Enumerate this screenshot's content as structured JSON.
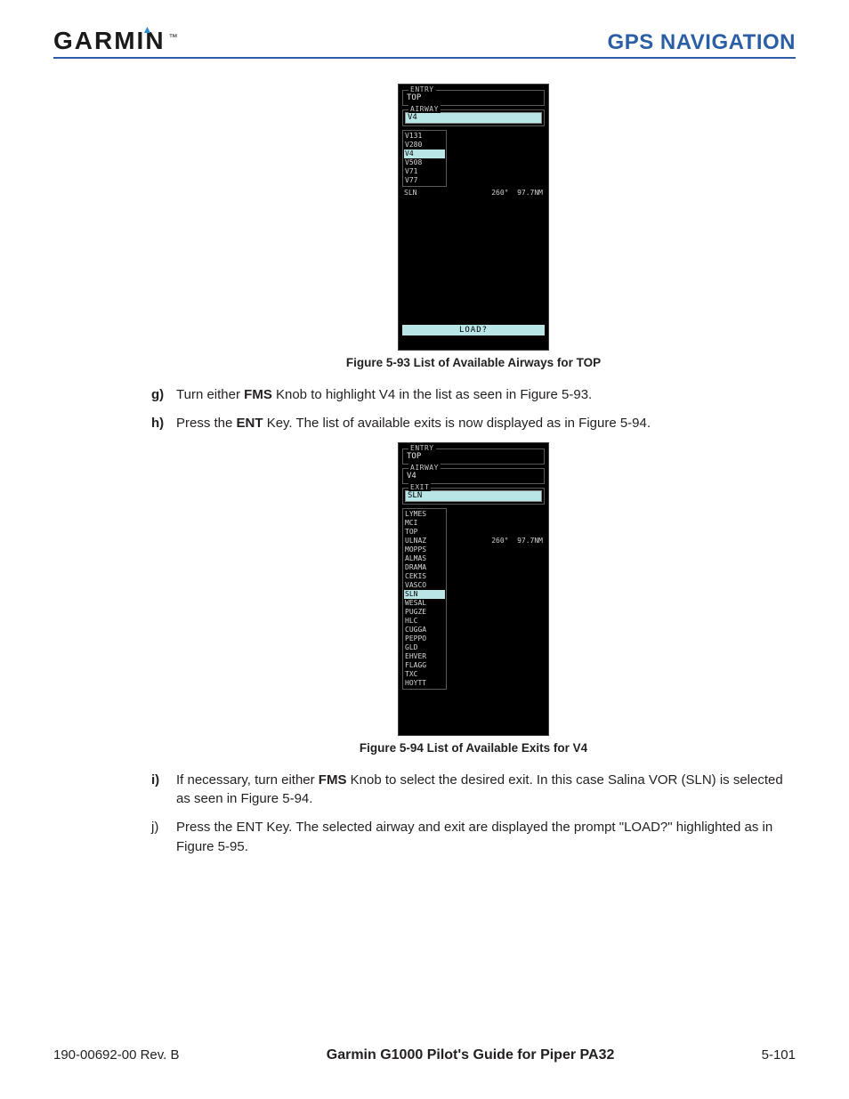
{
  "header": {
    "brand": "GARMIN",
    "section": "GPS NAVIGATION"
  },
  "figure1": {
    "caption": "Figure 5-93  List of Available Airways for TOP",
    "entry_legend": "ENTRY",
    "entry_value": "TOP",
    "airway_legend": "AIRWAY",
    "airway_value": "V4",
    "airways": [
      "V131",
      "V280",
      "V4",
      "V508",
      "V71",
      "V77"
    ],
    "selected_airway": "V4",
    "exit_line_label": "SLN",
    "bearing": "260°",
    "distance": "97.7NM",
    "load_label": "LOAD?"
  },
  "figure2": {
    "caption": "Figure 5-94  List of Available Exits for V4",
    "entry_legend": "ENTRY",
    "entry_value": "TOP",
    "airway_legend": "AIRWAY",
    "airway_value": "V4",
    "exit_legend": "EXIT",
    "exit_value": "SLN",
    "exits": [
      "LYMES",
      "MCI",
      "TOP",
      "ULNAZ",
      "MOPPS",
      "ALMAS",
      "DRAMA",
      "CEKIS",
      "VASCO",
      "SLN",
      "WESAL",
      "PUGZE",
      "HLC",
      "CUGGA",
      "PEPPO",
      "GLD",
      "EHVER",
      "FLAGG",
      "TXC",
      "HOYTT"
    ],
    "selected_exit": "SLN",
    "bearing": "260°",
    "distance": "97.7NM"
  },
  "steps": {
    "g": {
      "marker": "g)",
      "pre": "Turn either ",
      "bold1": "FMS",
      "post": " Knob to highlight V4 in the list as seen in Figure 5-93."
    },
    "h": {
      "marker": "h)",
      "pre": "Press the ",
      "bold1": "ENT",
      "post": " Key.  The list of available exits is now displayed as in Figure 5-94."
    },
    "i": {
      "marker": "i)",
      "pre": "If necessary, turn either ",
      "bold1": "FMS",
      "post": " Knob to select the desired exit.  In this case Salina VOR (SLN) is selected as seen in Figure 5-94."
    },
    "j": {
      "marker": "j)",
      "text": "Press the ENT Key.  The selected airway and exit are displayed the prompt \"LOAD?\" highlighted as in Figure 5-95."
    }
  },
  "footer": {
    "left": "190-00692-00  Rev. B",
    "center": "Garmin G1000 Pilot's Guide for Piper PA32",
    "right": "5-101"
  }
}
